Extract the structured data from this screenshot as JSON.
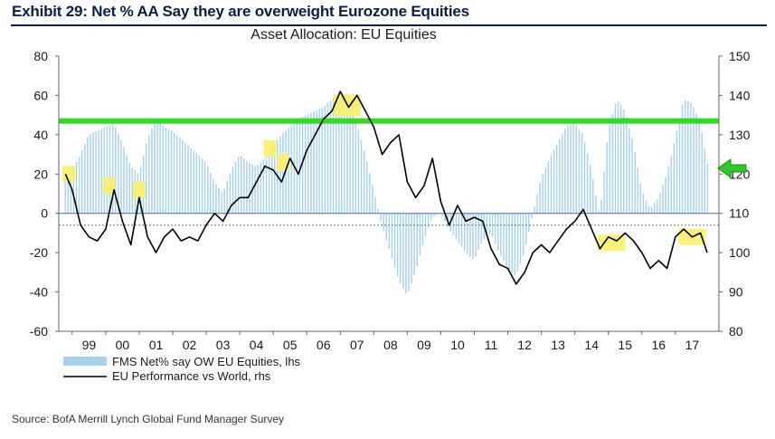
{
  "exhibit_title": "Exhibit 29: Net % AA Say they are overweight Eurozone Equities",
  "source": "Source: BofA Merrill Lynch Global Fund Manager Survey",
  "colors": {
    "bars": "#a9d2ef",
    "line": "#000000",
    "target_band": "#39d62a",
    "highlight": "#f8f06a",
    "arrow": "#2ec82a",
    "axis": "#666666",
    "dotted": "#777777"
  },
  "chart_data": {
    "type": "bar+line",
    "title": "Asset Allocation: EU Equities",
    "x_tick_labels": [
      "99",
      "00",
      "01",
      "02",
      "03",
      "04",
      "05",
      "06",
      "07",
      "08",
      "09",
      "10",
      "11",
      "12",
      "13",
      "14",
      "15",
      "16",
      "17"
    ],
    "y_left": {
      "label": "lhs",
      "range": [
        -60,
        80
      ],
      "ticks": [
        80,
        60,
        40,
        20,
        0,
        -20,
        -40,
        -60
      ]
    },
    "y_right": {
      "label": "rhs",
      "range": [
        80,
        150
      ],
      "ticks": [
        150,
        140,
        130,
        120,
        110,
        100,
        90,
        80
      ]
    },
    "reference_lines": {
      "target_band_lhs": 47,
      "dotted_lhs": -6
    },
    "legend": [
      {
        "name": "FMS Net% say OW EU Equities, lhs",
        "type": "bar"
      },
      {
        "name": "EU Performance vs World, rhs",
        "type": "line"
      }
    ],
    "bar_series": {
      "name": "FMS Net% say OW EU Equities, lhs",
      "x": [
        1998.8,
        1999.0,
        1999.25,
        1999.5,
        1999.75,
        2000.0,
        2000.25,
        2000.5,
        2000.75,
        2001.0,
        2001.25,
        2001.5,
        2001.75,
        2002.0,
        2002.25,
        2002.5,
        2002.75,
        2003.0,
        2003.25,
        2003.5,
        2003.75,
        2004.0,
        2004.25,
        2004.5,
        2004.75,
        2005.0,
        2005.25,
        2005.5,
        2005.75,
        2006.0,
        2006.25,
        2006.5,
        2006.75,
        2007.0,
        2007.25,
        2007.5,
        2007.75,
        2008.0,
        2008.25,
        2008.5,
        2008.75,
        2009.0,
        2009.25,
        2009.5,
        2009.75,
        2010.0,
        2010.25,
        2010.5,
        2010.75,
        2011.0,
        2011.25,
        2011.5,
        2011.75,
        2012.0,
        2012.25,
        2012.5,
        2012.75,
        2013.0,
        2013.25,
        2013.5,
        2013.75,
        2014.0,
        2014.25,
        2014.5,
        2014.75,
        2015.0,
        2015.25,
        2015.5,
        2015.75,
        2016.0,
        2016.25,
        2016.5,
        2016.75,
        2017.0,
        2017.25,
        2017.5,
        2017.75,
        2018.0
      ],
      "y": [
        18,
        22,
        30,
        40,
        42,
        44,
        46,
        36,
        24,
        20,
        38,
        48,
        44,
        42,
        38,
        34,
        30,
        26,
        16,
        10,
        22,
        30,
        26,
        24,
        28,
        34,
        40,
        44,
        48,
        50,
        52,
        54,
        58,
        62,
        58,
        46,
        30,
        12,
        -6,
        -20,
        -34,
        -42,
        -30,
        -14,
        -2,
        0,
        -8,
        -14,
        -20,
        -24,
        -14,
        -10,
        -20,
        -28,
        -32,
        -20,
        0,
        18,
        28,
        36,
        44,
        46,
        40,
        22,
        -2,
        42,
        58,
        52,
        36,
        12,
        2,
        8,
        20,
        38,
        58,
        56,
        46,
        22
      ]
    },
    "line_series": {
      "name": "EU Performance vs World, rhs",
      "x": [
        1998.8,
        1999.0,
        1999.25,
        1999.5,
        1999.75,
        2000.0,
        2000.25,
        2000.5,
        2000.75,
        2001.0,
        2001.25,
        2001.5,
        2001.75,
        2002.0,
        2002.25,
        2002.5,
        2002.75,
        2003.0,
        2003.25,
        2003.5,
        2003.75,
        2004.0,
        2004.25,
        2004.5,
        2004.75,
        2005.0,
        2005.25,
        2005.5,
        2005.75,
        2006.0,
        2006.25,
        2006.5,
        2006.75,
        2007.0,
        2007.25,
        2007.5,
        2007.75,
        2008.0,
        2008.25,
        2008.5,
        2008.75,
        2009.0,
        2009.25,
        2009.5,
        2009.75,
        2010.0,
        2010.25,
        2010.5,
        2010.75,
        2011.0,
        2011.25,
        2011.5,
        2011.75,
        2012.0,
        2012.25,
        2012.5,
        2012.75,
        2013.0,
        2013.25,
        2013.5,
        2013.75,
        2014.0,
        2014.25,
        2014.5,
        2014.75,
        2015.0,
        2015.25,
        2015.5,
        2015.75,
        2016.0,
        2016.25,
        2016.5,
        2016.75,
        2017.0,
        2017.25,
        2017.5,
        2017.75,
        2017.95
      ],
      "y": [
        120,
        116,
        107,
        104,
        103,
        106,
        116,
        108,
        102,
        114,
        104,
        100,
        104,
        106,
        103,
        104,
        103,
        107,
        110,
        108,
        112,
        114,
        114,
        118,
        122,
        121,
        118,
        124,
        120,
        126,
        130,
        134,
        136,
        141,
        137,
        140,
        136,
        132,
        125,
        128,
        130,
        118,
        114,
        117,
        124,
        113,
        107,
        112,
        108,
        109,
        108,
        101,
        97,
        96,
        92,
        95,
        100,
        102,
        100,
        103,
        106,
        108,
        111,
        106,
        101,
        104,
        103,
        105,
        103,
        100,
        96,
        98,
        96,
        104,
        106,
        104,
        105,
        100
      ]
    },
    "highlight_boxes": [
      {
        "x": 1998.9,
        "y": 20
      },
      {
        "x": 2000.1,
        "y": 14
      },
      {
        "x": 2001.0,
        "y": 12
      },
      {
        "x": 2004.9,
        "y": 33
      },
      {
        "x": 2005.3,
        "y": 26
      },
      {
        "x": 2007.2,
        "y": 55
      },
      {
        "x": 2015.1,
        "y": -15
      },
      {
        "x": 2017.5,
        "y": -12
      }
    ]
  }
}
